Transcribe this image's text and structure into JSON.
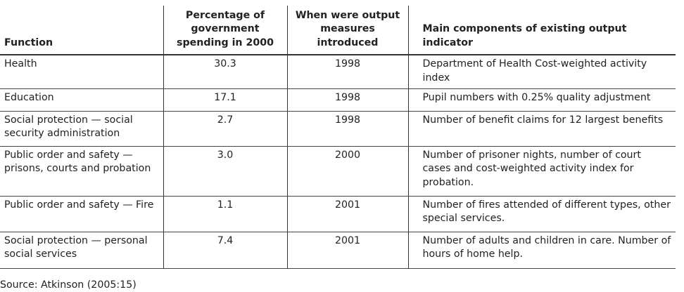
{
  "table": {
    "headers": [
      "Function",
      "Percentage of government spending in 2000",
      "When were output measures introduced",
      "Main components of existing output indicator"
    ],
    "rows": [
      {
        "function": "Health",
        "percentage": "30.3",
        "introduced": "1998",
        "components": "Department of Health Cost-weighted activity index"
      },
      {
        "function": "Education",
        "percentage": "17.1",
        "introduced": "1998",
        "components": "Pupil numbers with 0.25% quality adjustment"
      },
      {
        "function": "Social protection — social security administration",
        "percentage": "2.7",
        "introduced": "1998",
        "components": "Number of benefit claims for 12 largest benefits"
      },
      {
        "function": "Public order and safety — prisons, courts and probation",
        "percentage": "3.0",
        "introduced": "2000",
        "components": "Number of prisoner nights, number of court cases and cost-weighted activity index for probation."
      },
      {
        "function": "Public order and safety — Fire",
        "percentage": "1.1",
        "introduced": "2001",
        "components": "Number of fires attended of different types, other special services."
      },
      {
        "function": "Social protection — personal social services",
        "percentage": "7.4",
        "introduced": "2001",
        "components": "Number of adults and children in care. Number of hours of home help."
      }
    ]
  },
  "source": "Source: Atkinson (2005:15)"
}
